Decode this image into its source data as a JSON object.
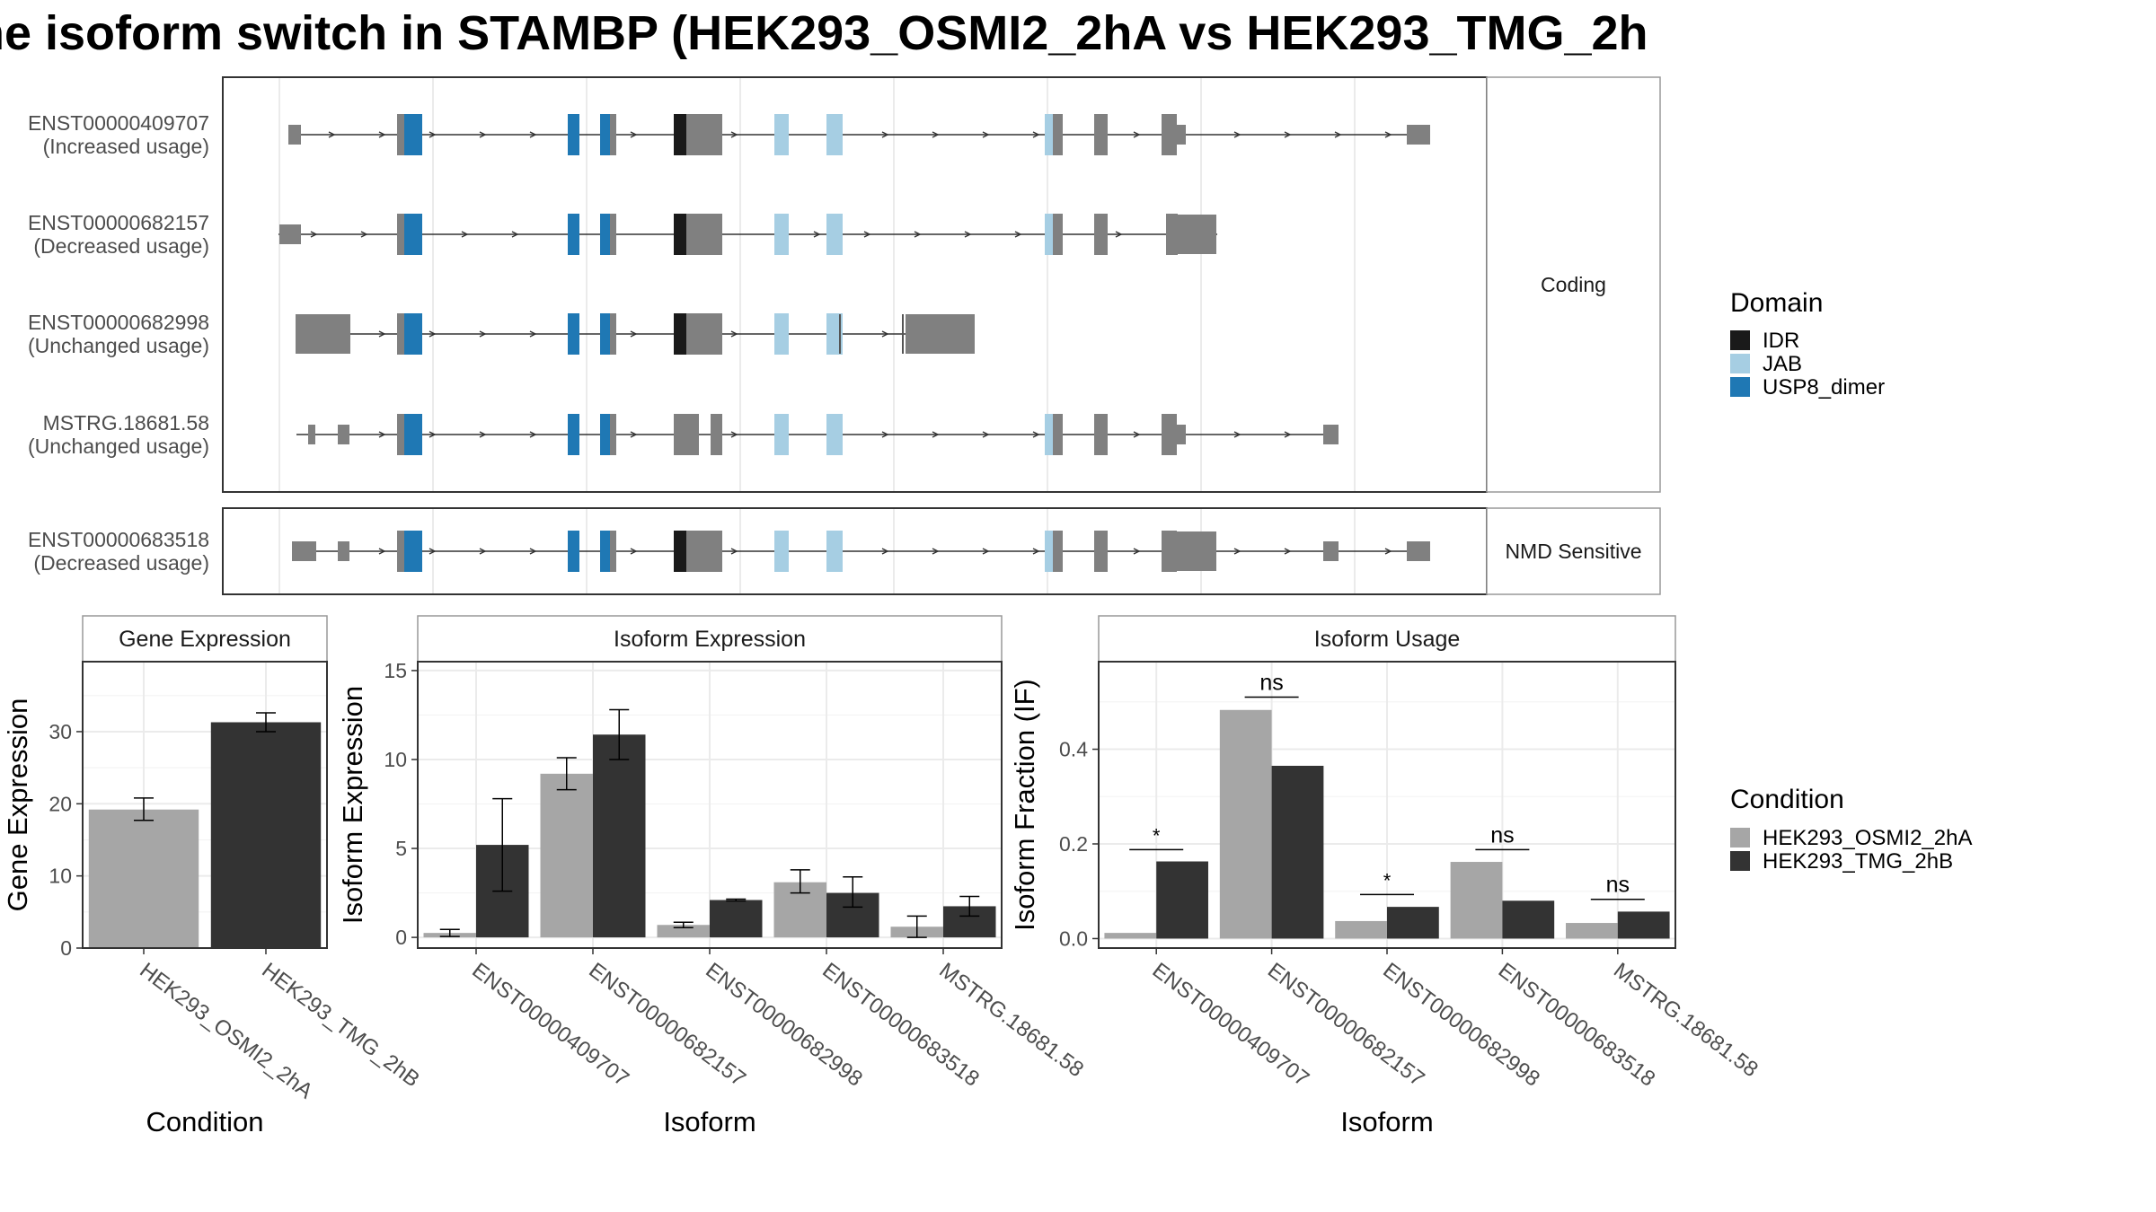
{
  "title": "ne isoform switch in STAMBP (HEK293_OSMI2_2hA vs HEK293_TMG_2h",
  "colors": {
    "exon": "#808080",
    "IDR": "#1a1a1a",
    "JAB": "#a6cee3",
    "USP8_dimer": "#1f78b4",
    "cond1": "#a6a6a6",
    "cond2": "#333333"
  },
  "structure": {
    "facets": [
      {
        "label": "Coding",
        "transcripts": [
          0,
          1,
          2,
          3
        ]
      },
      {
        "label": "NMD Sensitive",
        "transcripts": [
          4
        ]
      }
    ],
    "transcripts": [
      {
        "id": "ENST00000409707",
        "usage": "(Increased usage)"
      },
      {
        "id": "ENST00000682157",
        "usage": "(Decreased usage)"
      },
      {
        "id": "ENST00000682998",
        "usage": "(Unchanged usage)"
      },
      {
        "id": "MSTRG.18681.58",
        "usage": "(Unchanged usage)"
      },
      {
        "id": "ENST00000683518",
        "usage": "(Decreased usage)"
      }
    ]
  },
  "legend_domain": {
    "title": "Domain",
    "items": [
      "IDR",
      "JAB",
      "USP8_dimer"
    ]
  },
  "legend_condition": {
    "title": "Condition",
    "items": [
      "HEK293_OSMI2_2hA",
      "HEK293_TMG_2hB"
    ]
  },
  "chart_data": [
    {
      "type": "bar",
      "title": "Gene Expression",
      "xlabel": "Condition",
      "ylabel": "Gene Expression",
      "categories": [
        "HEK293_OSMI2_2hA",
        "HEK293_TMG_2hB"
      ],
      "values": [
        19.2,
        31.3
      ],
      "err_low": [
        17.7,
        30.0
      ],
      "err_high": [
        20.8,
        32.6
      ],
      "ylim": [
        0,
        39.7
      ],
      "yticks": [
        0,
        10,
        20,
        30
      ],
      "grid": true
    },
    {
      "type": "bar",
      "title": "Isoform Expression",
      "xlabel": "Isoform",
      "ylabel": "Isoform Expression",
      "categories": [
        "ENST00000409707",
        "ENST00000682157",
        "ENST00000682998",
        "ENST00000683518",
        "MSTRG.18681.58"
      ],
      "series": [
        {
          "name": "HEK293_OSMI2_2hA",
          "values": [
            0.25,
            9.2,
            0.7,
            3.1,
            0.6
          ],
          "err_low": [
            0.05,
            8.3,
            0.55,
            2.5,
            0.0
          ],
          "err_high": [
            0.45,
            10.1,
            0.85,
            3.8,
            1.2
          ]
        },
        {
          "name": "HEK293_TMG_2hB",
          "values": [
            5.2,
            11.4,
            2.1,
            2.5,
            1.75
          ],
          "err_low": [
            2.6,
            10.0,
            2.05,
            1.7,
            1.2
          ],
          "err_high": [
            7.8,
            12.8,
            2.15,
            3.4,
            2.3
          ]
        }
      ],
      "ylim": [
        -0.6,
        15.5
      ],
      "yticks": [
        0,
        5,
        10,
        15
      ],
      "grid": true
    },
    {
      "type": "bar",
      "title": "Isoform Usage",
      "xlabel": "Isoform",
      "ylabel": "Isoform Fraction (IF)",
      "categories": [
        "ENST00000409707",
        "ENST00000682157",
        "ENST00000682998",
        "ENST00000683518",
        "MSTRG.18681.58"
      ],
      "series": [
        {
          "name": "HEK293_OSMI2_2hA",
          "values": [
            0.012,
            0.483,
            0.037,
            0.162,
            0.033
          ]
        },
        {
          "name": "HEK293_TMG_2hB",
          "values": [
            0.163,
            0.365,
            0.067,
            0.08,
            0.057
          ]
        }
      ],
      "significance": [
        "*",
        "ns",
        "*",
        "ns",
        "ns"
      ],
      "sig_line_y": [
        0.188,
        0.51,
        0.093,
        0.188,
        0.083
      ],
      "ylim": [
        -0.02,
        0.585
      ],
      "yticks": [
        0.0,
        0.2,
        0.4
      ],
      "ytick_labels": [
        "0.0",
        "0.2",
        "0.4"
      ],
      "grid": true
    }
  ]
}
